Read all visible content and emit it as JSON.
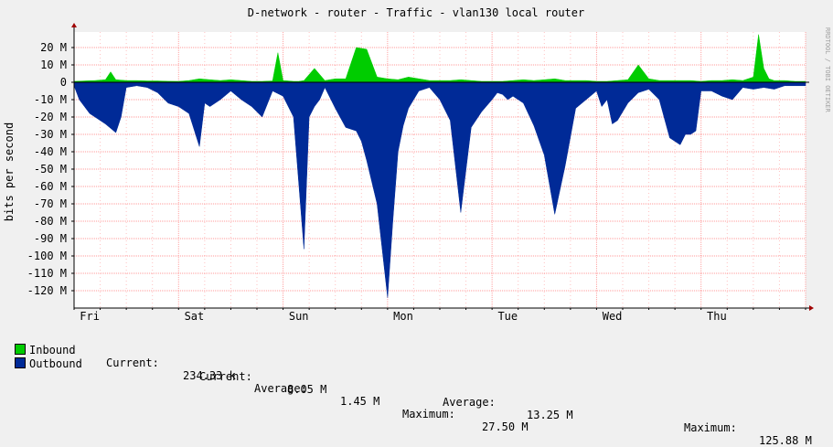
{
  "chart_data": {
    "type": "area",
    "title": "D-network - router - Traffic - vlan130 local router",
    "ylabel": "bits per second",
    "watermark": "RRDTOOL / TOBI OETIKER",
    "ylim": [
      -125,
      25
    ],
    "y_unit": "M",
    "y_ticks": [
      20,
      10,
      0,
      -10,
      -20,
      -30,
      -40,
      -50,
      -60,
      -70,
      -80,
      -90,
      -100,
      -110,
      -120
    ],
    "y_tick_labels": [
      "20 M",
      "10 M",
      "0",
      "-10 M",
      "-20 M",
      "-30 M",
      "-40 M",
      "-50 M",
      "-60 M",
      "-70 M",
      "-80 M",
      "-90 M",
      "-100 M",
      "-110 M",
      "-120 M"
    ],
    "xlim": [
      0,
      7
    ],
    "x_tick_labels": [
      "Fri",
      "Sat",
      "Sun",
      "Mon",
      "Tue",
      "Wed",
      "Thu"
    ],
    "x_tick_positions": [
      0.15,
      1.15,
      2.15,
      3.15,
      4.15,
      5.15,
      6.15
    ],
    "grid": true,
    "colors": {
      "inbound": "#00cc00",
      "outbound": "#002a97",
      "grid": "#ff9999",
      "axis": "#000000",
      "background": "#ffffff"
    },
    "series": [
      {
        "name": "Inbound",
        "x": [
          0,
          0.1,
          0.2,
          0.3,
          0.35,
          0.4,
          0.5,
          0.6,
          0.7,
          0.8,
          0.9,
          1.0,
          1.1,
          1.2,
          1.3,
          1.4,
          1.5,
          1.6,
          1.7,
          1.8,
          1.9,
          1.95,
          2.0,
          2.05,
          2.1,
          2.15,
          2.2,
          2.3,
          2.4,
          2.5,
          2.6,
          2.7,
          2.8,
          2.9,
          3.0,
          3.1,
          3.2,
          3.3,
          3.4,
          3.5,
          3.6,
          3.7,
          3.8,
          3.9,
          4.0,
          4.1,
          4.2,
          4.3,
          4.4,
          4.5,
          4.6,
          4.7,
          4.8,
          4.9,
          5.0,
          5.1,
          5.2,
          5.3,
          5.4,
          5.5,
          5.6,
          5.7,
          5.8,
          5.9,
          6.0,
          6.1,
          6.2,
          6.3,
          6.4,
          6.5,
          6.55,
          6.6,
          6.65,
          6.7,
          6.8,
          6.9,
          7.0
        ],
        "values": [
          0.5,
          0.8,
          1,
          1.5,
          6,
          1.5,
          1,
          1,
          0.8,
          0.8,
          0.6,
          0.5,
          1,
          2,
          1.5,
          1,
          1.5,
          1,
          0.5,
          0.5,
          0.8,
          17,
          1,
          0.8,
          0.5,
          0.5,
          1,
          8,
          1,
          2,
          2,
          20,
          19,
          3,
          2,
          1.5,
          3,
          2,
          1,
          1,
          1,
          1.5,
          1,
          0.5,
          0.5,
          0.5,
          1,
          1.5,
          1,
          1.5,
          2,
          1,
          1,
          1,
          0.5,
          0.5,
          1,
          1.5,
          10,
          2,
          1,
          1,
          1,
          1,
          0.5,
          1,
          1,
          1.5,
          1,
          3,
          27.5,
          8,
          2,
          1,
          1,
          0.5,
          0.5
        ]
      },
      {
        "name": "Outbound",
        "x": [
          0,
          0.05,
          0.1,
          0.15,
          0.2,
          0.3,
          0.4,
          0.45,
          0.5,
          0.6,
          0.7,
          0.8,
          0.9,
          1.0,
          1.1,
          1.2,
          1.25,
          1.3,
          1.4,
          1.5,
          1.6,
          1.7,
          1.8,
          1.9,
          2.0,
          2.1,
          2.2,
          2.25,
          2.3,
          2.35,
          2.4,
          2.5,
          2.6,
          2.7,
          2.75,
          2.8,
          2.9,
          3.0,
          3.05,
          3.1,
          3.15,
          3.2,
          3.3,
          3.4,
          3.5,
          3.6,
          3.7,
          3.8,
          3.9,
          4.0,
          4.05,
          4.1,
          4.15,
          4.2,
          4.3,
          4.4,
          4.5,
          4.6,
          4.7,
          4.8,
          4.9,
          5.0,
          5.05,
          5.1,
          5.15,
          5.2,
          5.3,
          5.4,
          5.5,
          5.6,
          5.7,
          5.8,
          5.85,
          5.9,
          5.95,
          6.0,
          6.1,
          6.2,
          6.3,
          6.4,
          6.5,
          6.6,
          6.7,
          6.8,
          6.9,
          7.0
        ],
        "values": [
          -2,
          -10,
          -14,
          -18,
          -20,
          -24,
          -29,
          -20,
          -3,
          -2,
          -3,
          -6,
          -12,
          -14,
          -18,
          -37,
          -12,
          -14,
          -10,
          -5,
          -10,
          -14,
          -20,
          -5,
          -8,
          -20,
          -96,
          -20,
          -14,
          -10,
          -3,
          -15,
          -26,
          -28,
          -34,
          -45,
          -70,
          -124,
          -80,
          -40,
          -25,
          -15,
          -5,
          -3,
          -10,
          -22,
          -75,
          -26,
          -17,
          -10,
          -6,
          -7,
          -10,
          -8,
          -12,
          -25,
          -42,
          -76,
          -48,
          -15,
          -10,
          -5,
          -14,
          -10,
          -24,
          -22,
          -12,
          -6,
          -4,
          -10,
          -32,
          -36,
          -30,
          -30,
          -28,
          -5,
          -5,
          -8,
          -10,
          -3,
          -4,
          -3,
          -4,
          -2,
          -2,
          -2
        ]
      }
    ],
    "legend": {
      "inbound": {
        "label": "Inbound",
        "current_label": "Current:",
        "current": "234.33 k",
        "average_label": "Average:",
        "average": "1.45 M",
        "maximum_label": "Maximum:",
        "maximum": "27.50 M"
      },
      "outbound": {
        "label": "Outbound",
        "current_label": "Current:",
        "current": "8.05 M",
        "average_label": "Average:",
        "average": "13.25 M",
        "maximum_label": "Maximum:",
        "maximum": "125.88 M"
      }
    }
  }
}
